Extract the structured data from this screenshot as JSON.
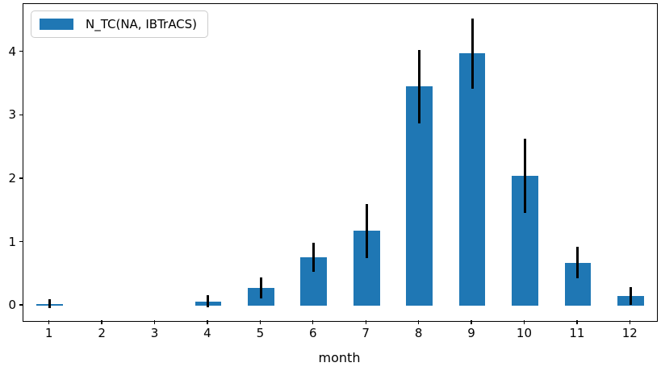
{
  "legend": {
    "label": "N_TC(NA, IBTrACS)",
    "swatch_color": "#1f77b4"
  },
  "chart_data": {
    "type": "bar",
    "title": "",
    "xlabel": "month",
    "ylabel": "",
    "categories": [
      "1",
      "2",
      "3",
      "4",
      "5",
      "6",
      "7",
      "8",
      "9",
      "10",
      "11",
      "12"
    ],
    "series": [
      {
        "name": "N_TC(NA, IBTrACS)",
        "values": [
          0.03,
          0,
          0,
          0.07,
          0.28,
          0.76,
          1.18,
          3.46,
          3.98,
          2.05,
          0.68,
          0.15
        ],
        "errors": [
          0.07,
          0,
          0,
          0.1,
          0.17,
          0.23,
          0.43,
          0.58,
          0.55,
          0.58,
          0.25,
          0.14
        ],
        "color": "#1f77b4",
        "error_color": "#000000"
      }
    ],
    "yticks": [
      0,
      1,
      2,
      3,
      4
    ],
    "ylim": [
      -0.24,
      4.76
    ],
    "bar_width_fraction": 0.5,
    "legend_position": "upper left",
    "grid": false
  }
}
